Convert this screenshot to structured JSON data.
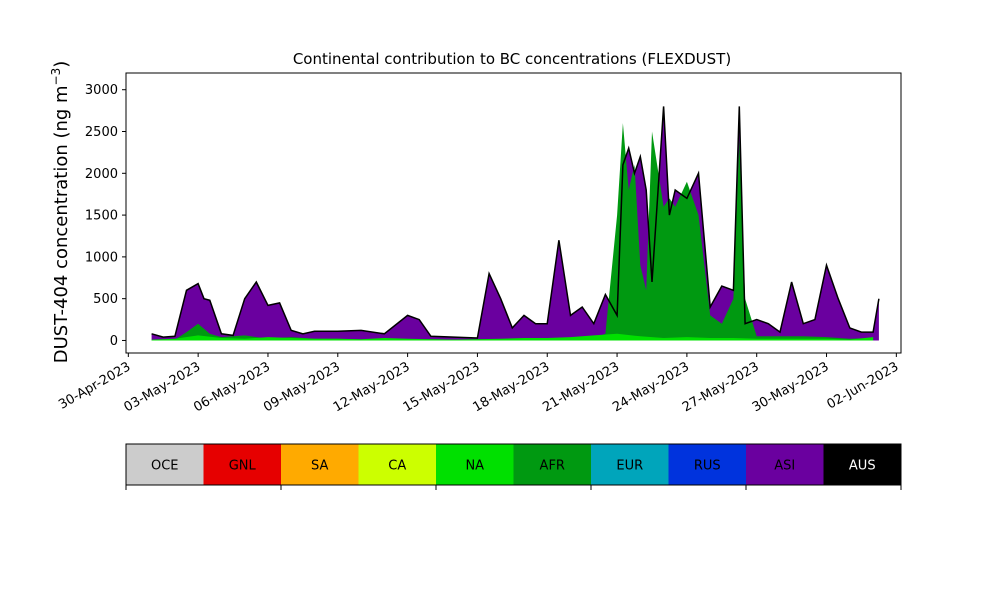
{
  "chart_data": {
    "type": "area",
    "title": "Continental contribution to BC concentrations (FLEXDUST)",
    "ylabel_main": "DUST-404 concentration (ng m",
    "ylabel_sup": "−3",
    "ylabel_close": ")",
    "xlabel": "",
    "x_range": [
      "2023-04-30",
      "2023-06-02"
    ],
    "ylim": [
      -150,
      3200
    ],
    "y_ticks": [
      0,
      500,
      1000,
      1500,
      2000,
      2500,
      3000
    ],
    "x_ticks": [
      "30-Apr-2023",
      "03-May-2023",
      "06-May-2023",
      "09-May-2023",
      "12-May-2023",
      "15-May-2023",
      "18-May-2023",
      "21-May-2023",
      "24-May-2023",
      "27-May-2023",
      "30-May-2023",
      "02-Jun-2023"
    ],
    "x_tick_dates": [
      "2023-04-30",
      "2023-05-03",
      "2023-05-06",
      "2023-05-09",
      "2023-05-12",
      "2023-05-15",
      "2023-05-18",
      "2023-05-21",
      "2023-05-24",
      "2023-05-27",
      "2023-05-30",
      "2023-06-02"
    ],
    "legend": [
      "OCE",
      "GNL",
      "SA",
      "CA",
      "NA",
      "AFR",
      "EUR",
      "RUS",
      "ASI",
      "AUS"
    ],
    "legend_colors": [
      "#cccccc",
      "#e60000",
      "#ffaa00",
      "#ccff00",
      "#00e000",
      "#009911",
      "#00a5bb",
      "#0033dd",
      "#6a009f",
      "#000000"
    ],
    "legend_text_colors": [
      "#000000",
      "#000000",
      "#000000",
      "#000000",
      "#000000",
      "#000000",
      "#000000",
      "#000000",
      "#000000",
      "#ffffff"
    ],
    "series": [
      {
        "name": "NA",
        "x": [
          "2023-05-01",
          "2023-05-02",
          "2023-05-03",
          "2023-05-04",
          "2023-05-05",
          "2023-05-06",
          "2023-05-07",
          "2023-05-08",
          "2023-05-09",
          "2023-05-10",
          "2023-05-11",
          "2023-05-12",
          "2023-05-13",
          "2023-05-14",
          "2023-05-15",
          "2023-05-16",
          "2023-05-17",
          "2023-05-18",
          "2023-05-19",
          "2023-05-20",
          "2023-05-21",
          "2023-05-22",
          "2023-05-23",
          "2023-05-24",
          "2023-05-25",
          "2023-05-26",
          "2023-05-27",
          "2023-05-28",
          "2023-05-29",
          "2023-05-30",
          "2023-05-31",
          "2023-06-01"
        ],
        "values": [
          10,
          20,
          60,
          30,
          20,
          40,
          30,
          20,
          20,
          15,
          30,
          20,
          15,
          10,
          15,
          20,
          30,
          30,
          40,
          60,
          80,
          50,
          30,
          40,
          30,
          30,
          20,
          20,
          20,
          20,
          10,
          40
        ]
      },
      {
        "name": "AFR",
        "x": [
          "2023-05-01",
          "2023-05-01T12:00",
          "2023-05-02",
          "2023-05-02T12:00",
          "2023-05-03",
          "2023-05-03T12:00",
          "2023-05-04",
          "2023-05-05",
          "2023-05-06",
          "2023-05-07",
          "2023-05-08",
          "2023-05-09",
          "2023-05-10",
          "2023-05-11",
          "2023-05-12",
          "2023-05-13",
          "2023-05-14",
          "2023-05-15",
          "2023-05-16",
          "2023-05-17",
          "2023-05-18",
          "2023-05-19",
          "2023-05-20",
          "2023-05-20T12:00",
          "2023-05-21",
          "2023-05-21T06:00",
          "2023-05-21T12:00",
          "2023-05-21T18:00",
          "2023-05-22",
          "2023-05-22T06:00",
          "2023-05-22T12:00",
          "2023-05-23",
          "2023-05-23T06:00",
          "2023-05-23T12:00",
          "2023-05-24",
          "2023-05-24T12:00",
          "2023-05-25",
          "2023-05-25T12:00",
          "2023-05-26",
          "2023-05-26T06:00",
          "2023-05-26T12:00",
          "2023-05-27",
          "2023-05-28",
          "2023-05-29",
          "2023-05-30",
          "2023-05-31",
          "2023-06-01"
        ],
        "values": [
          0,
          0,
          10,
          100,
          200,
          80,
          40,
          60,
          20,
          40,
          20,
          20,
          10,
          15,
          10,
          15,
          10,
          15,
          10,
          15,
          20,
          20,
          30,
          80,
          1500,
          2600,
          1800,
          2100,
          900,
          600,
          2500,
          1600,
          1700,
          1600,
          1900,
          1500,
          300,
          200,
          500,
          2400,
          500,
          50,
          50,
          50,
          40,
          20,
          30
        ]
      },
      {
        "name": "ASI",
        "x": [
          "2023-05-01",
          "2023-05-01T12:00",
          "2023-05-02",
          "2023-05-02T12:00",
          "2023-05-03",
          "2023-05-03T06:00",
          "2023-05-03T12:00",
          "2023-05-04",
          "2023-05-04T12:00",
          "2023-05-05",
          "2023-05-05T12:00",
          "2023-05-06",
          "2023-05-06T12:00",
          "2023-05-07",
          "2023-05-07T12:00",
          "2023-05-08",
          "2023-05-09",
          "2023-05-10",
          "2023-05-11",
          "2023-05-12",
          "2023-05-12T12:00",
          "2023-05-13",
          "2023-05-14",
          "2023-05-15",
          "2023-05-15T12:00",
          "2023-05-16",
          "2023-05-16T12:00",
          "2023-05-17",
          "2023-05-17T12:00",
          "2023-05-18",
          "2023-05-18T12:00",
          "2023-05-19",
          "2023-05-19T12:00",
          "2023-05-20",
          "2023-05-20T12:00",
          "2023-05-21",
          "2023-05-21T06:00",
          "2023-05-21T12:00",
          "2023-05-21T18:00",
          "2023-05-22",
          "2023-05-22T06:00",
          "2023-05-22T12:00",
          "2023-05-23",
          "2023-05-23T06:00",
          "2023-05-23T12:00",
          "2023-05-24",
          "2023-05-24T12:00",
          "2023-05-25",
          "2023-05-25T12:00",
          "2023-05-26",
          "2023-05-26T06:00",
          "2023-05-26T12:00",
          "2023-05-27",
          "2023-05-27T12:00",
          "2023-05-28",
          "2023-05-28T12:00",
          "2023-05-29",
          "2023-05-29T12:00",
          "2023-05-30",
          "2023-05-30T12:00",
          "2023-05-31",
          "2023-05-31T12:00",
          "2023-06-01",
          "2023-06-01T06:00"
        ],
        "values": [
          80,
          40,
          50,
          600,
          680,
          500,
          480,
          80,
          60,
          500,
          700,
          420,
          450,
          120,
          80,
          110,
          110,
          120,
          80,
          300,
          250,
          50,
          40,
          30,
          800,
          500,
          150,
          300,
          200,
          200,
          1200,
          300,
          400,
          200,
          550,
          300,
          2100,
          2300,
          2000,
          2200,
          1800,
          700,
          2800,
          1500,
          1800,
          1700,
          2000,
          400,
          650,
          600,
          2800,
          200,
          250,
          200,
          100,
          700,
          200,
          250,
          900,
          500,
          150,
          100,
          100,
          500
        ]
      }
    ]
  }
}
